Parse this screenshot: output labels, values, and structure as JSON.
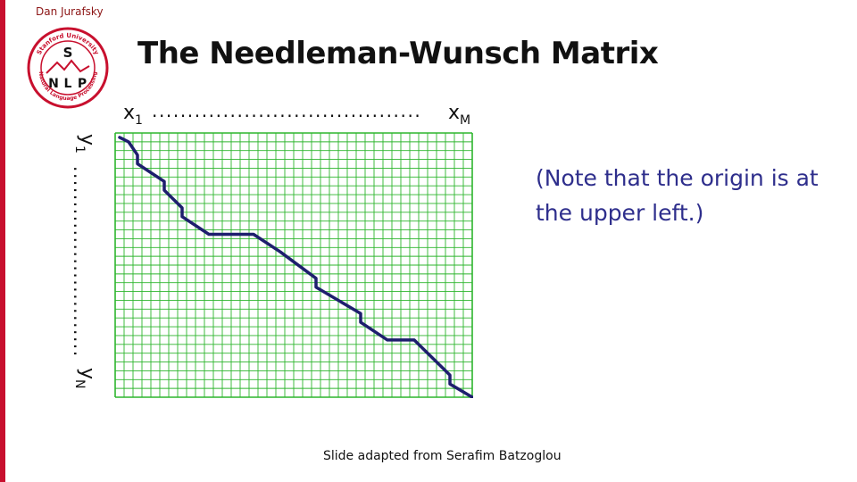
{
  "slide": {
    "author": "Dan Jurafsky",
    "title": "The Needleman-Wunsch Matrix",
    "note": "(Note that the origin is at the upper left.)",
    "credit": "Slide adapted from Serafim Batzoglou"
  },
  "logo": {
    "top_text": "Stanford University",
    "bottom_text": "Natural Language Processing",
    "letters": [
      "S",
      "N",
      "L",
      "P"
    ],
    "color": "#c8102e"
  },
  "axes": {
    "x_start": "x",
    "x_start_sub": "1",
    "x_end": "x",
    "x_end_sub": "M",
    "y_start": "y",
    "y_start_sub": "1",
    "y_end": "y",
    "y_end_sub": "N",
    "dots": "......................................"
  },
  "matrix": {
    "grid_color": "#2db52d",
    "path_color": "#1e1e6e",
    "columns": 40,
    "rows": 30,
    "alignment_path": [
      [
        0,
        0
      ],
      [
        1,
        0.5
      ],
      [
        2,
        2
      ],
      [
        2,
        3
      ],
      [
        5,
        5
      ],
      [
        5,
        6
      ],
      [
        6,
        7
      ],
      [
        7,
        8
      ],
      [
        7,
        9
      ],
      [
        10,
        11
      ],
      [
        15,
        11
      ],
      [
        18,
        13
      ],
      [
        22,
        16
      ],
      [
        22,
        17
      ],
      [
        27,
        20
      ],
      [
        27,
        21
      ],
      [
        30,
        23
      ],
      [
        33,
        23
      ],
      [
        37,
        27
      ],
      [
        37,
        28
      ],
      [
        39.5,
        29.5
      ]
    ]
  },
  "colors": {
    "accent": "#c8102e",
    "note_text": "#2e2e8c",
    "title_text": "#111111"
  }
}
